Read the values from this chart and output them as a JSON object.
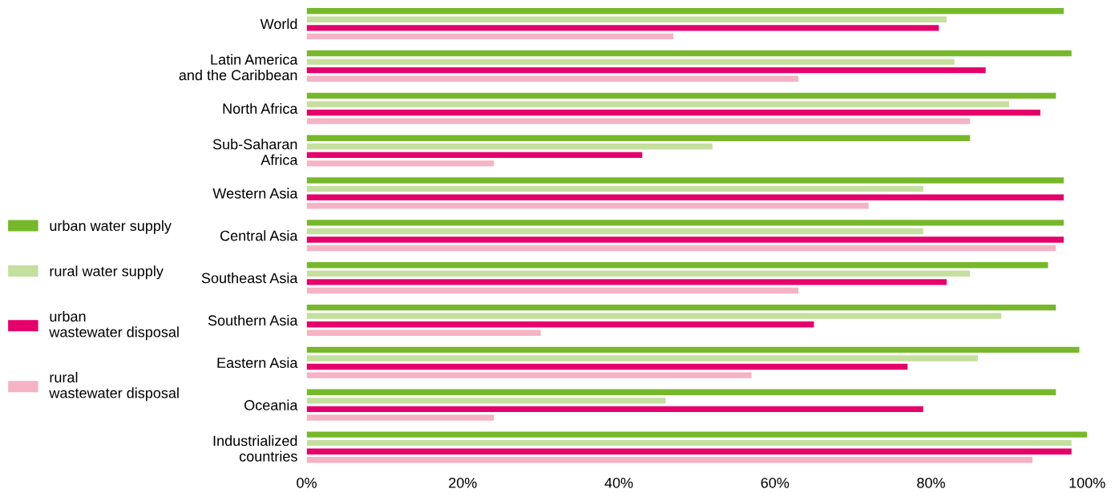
{
  "chart_data": {
    "type": "bar",
    "orientation": "horizontal",
    "categories": [
      "World",
      "Latin America\nand the Caribbean",
      "North Africa",
      "Sub-Saharan\nAfrica",
      "Western Asia",
      "Central Asia",
      "Southeast Asia",
      "Southern Asia",
      "Eastern Asia",
      "Oceania",
      "Industrialized\ncountries"
    ],
    "series": [
      {
        "name": "urban water supply",
        "color": "#76b82a",
        "values": [
          97,
          98,
          96,
          85,
          97,
          97,
          95,
          96,
          99,
          96,
          100
        ]
      },
      {
        "name": "rural water supply",
        "color": "#c5df9e",
        "values": [
          82,
          83,
          90,
          52,
          79,
          79,
          85,
          89,
          86,
          46,
          98
        ]
      },
      {
        "name": "urban\nwastewater disposal",
        "color": "#e5006a",
        "values": [
          81,
          87,
          94,
          43,
          97,
          97,
          82,
          65,
          77,
          79,
          98
        ]
      },
      {
        "name": "rural\nwastewater disposal",
        "color": "#f5b3c5",
        "values": [
          47,
          63,
          85,
          24,
          72,
          96,
          63,
          30,
          57,
          24,
          93
        ]
      }
    ],
    "xlim": [
      0,
      100
    ],
    "xticks": [
      {
        "value": 0,
        "label": "0%"
      },
      {
        "value": 20,
        "label": "20%"
      },
      {
        "value": 40,
        "label": "40%"
      },
      {
        "value": 60,
        "label": "60%"
      },
      {
        "value": 80,
        "label": "80%"
      },
      {
        "value": 100,
        "label": "100%"
      }
    ],
    "legend": "left",
    "grid": false
  }
}
